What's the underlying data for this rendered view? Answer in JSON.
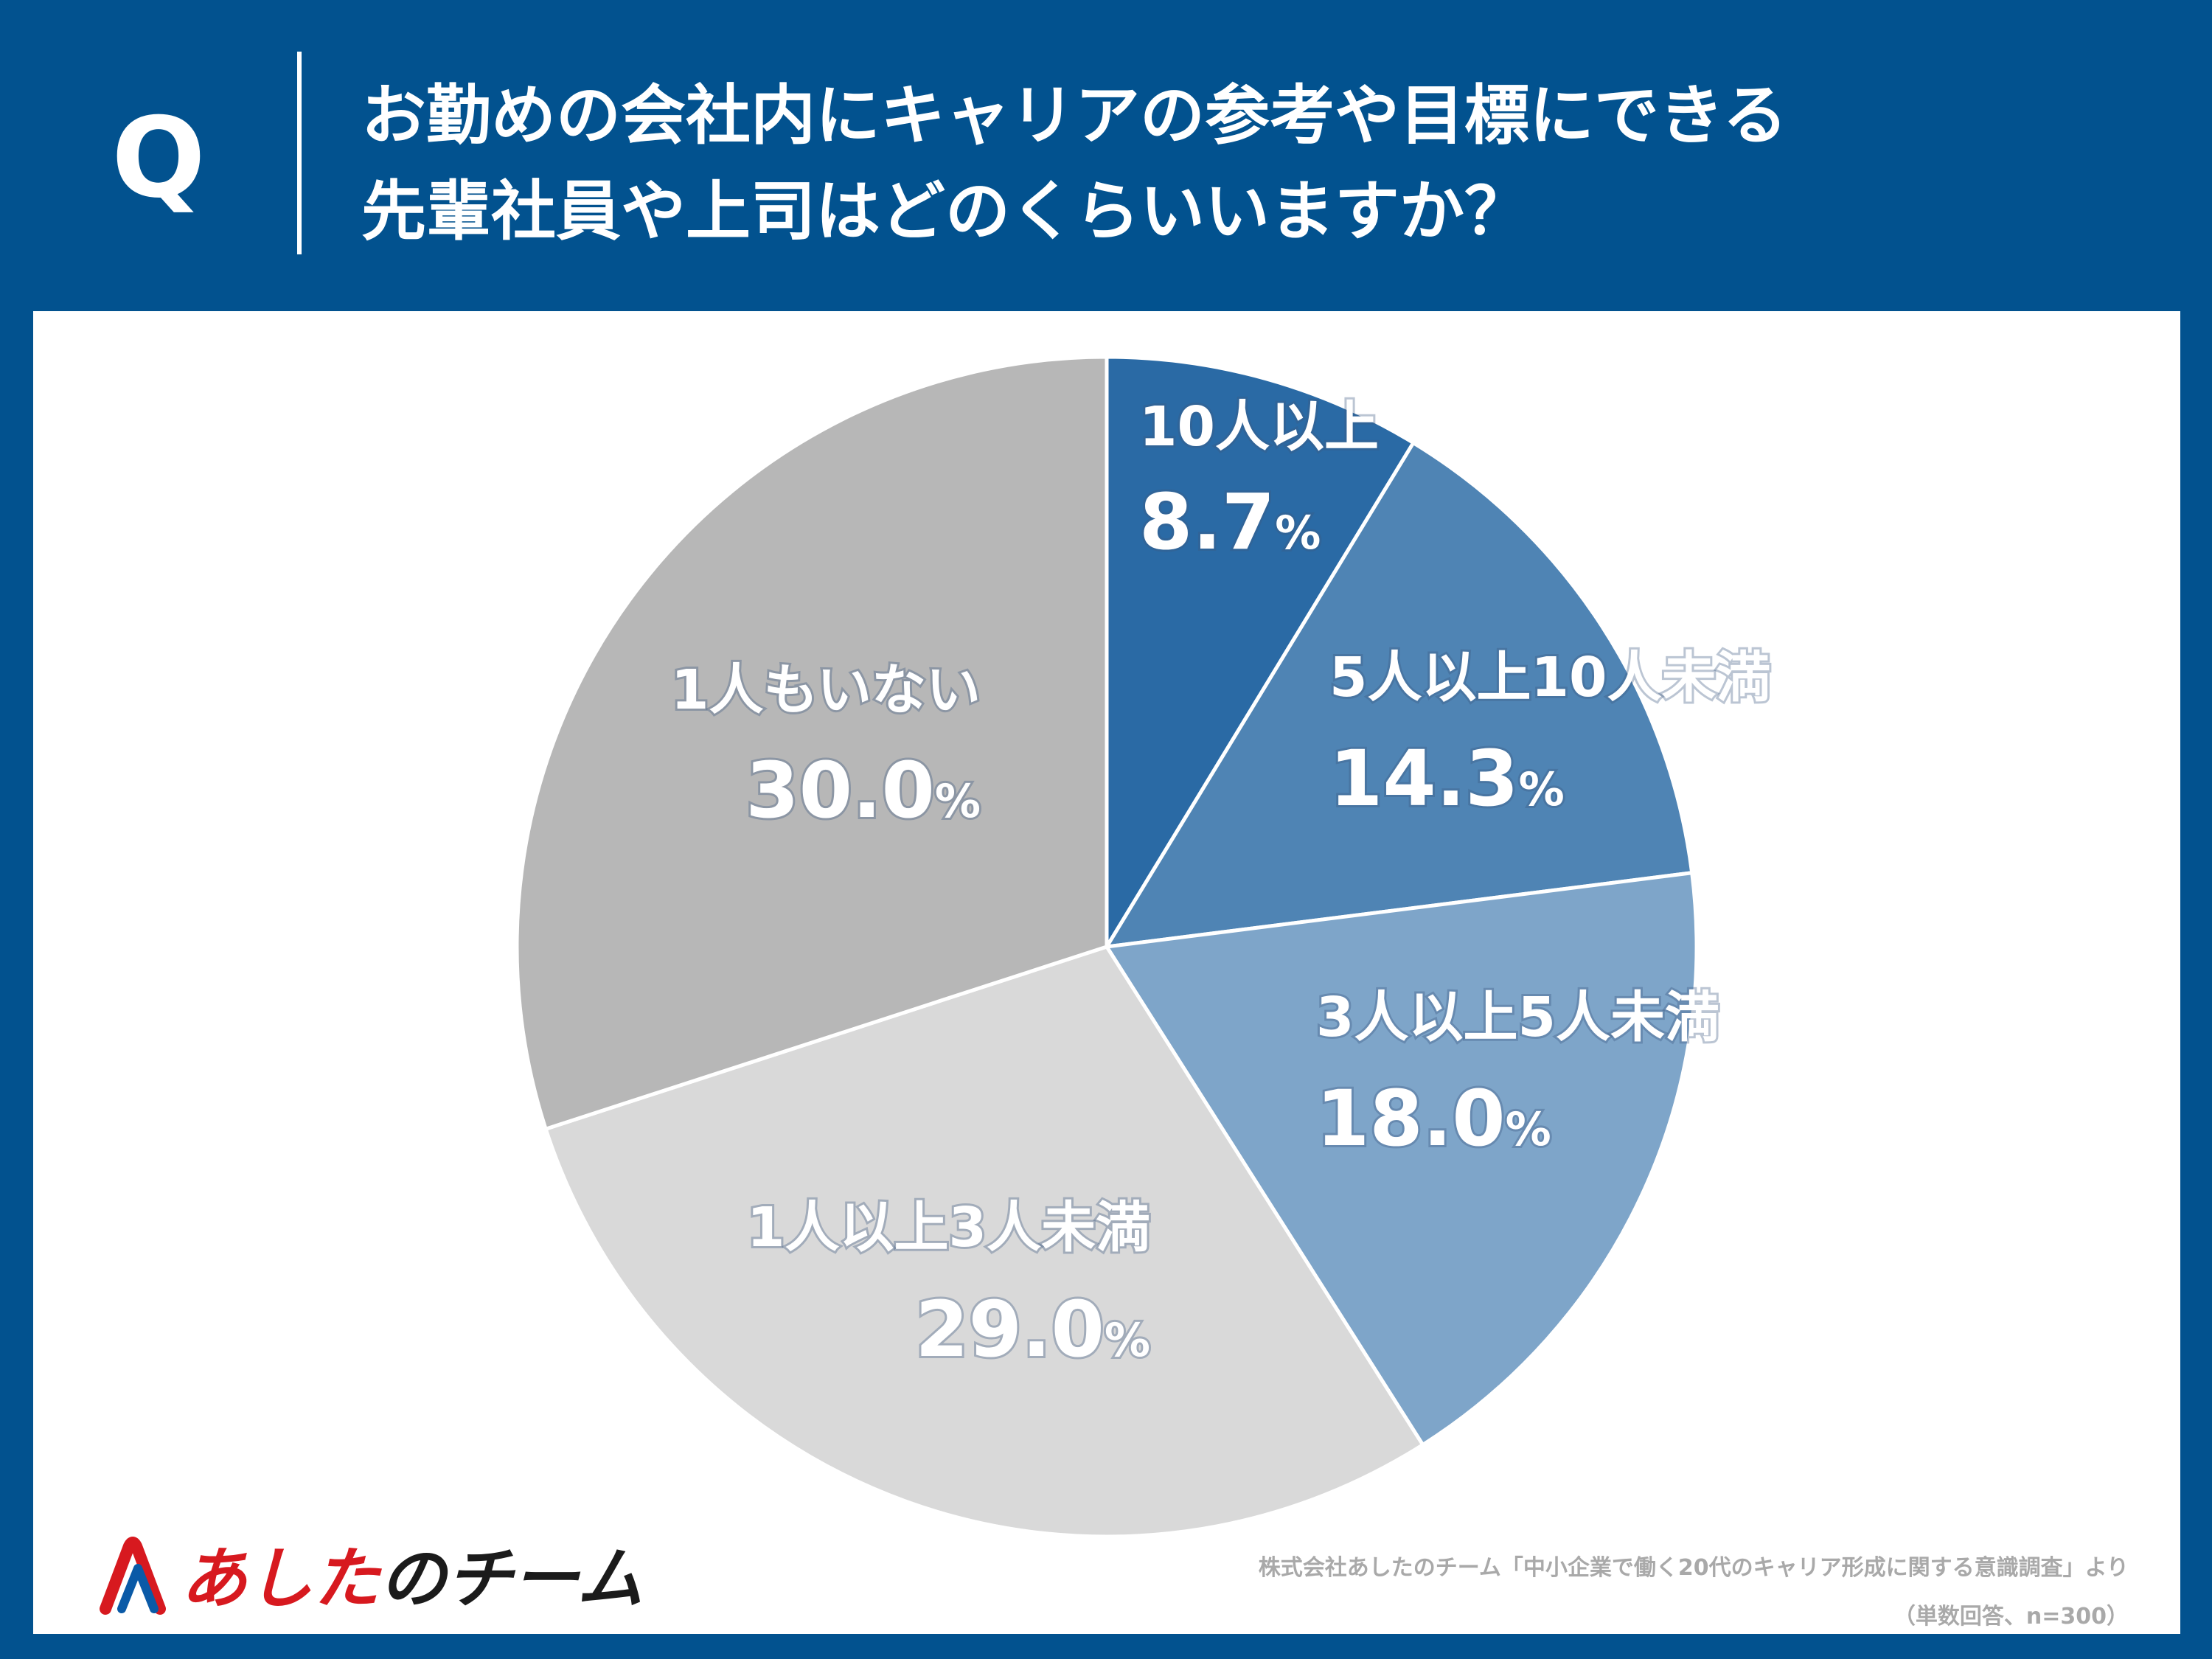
{
  "header": {
    "q_mark": "Q",
    "question_line1": "お勤めの会社内にキャリアの参考や目標にできる",
    "question_line2": "先輩社員や上司はどのくらいいますか？"
  },
  "chart_data": {
    "type": "pie",
    "title": "お勤めの会社内にキャリアの参考や目標にできる先輩社員や上司はどのくらいいますか？",
    "percent_unit": "%",
    "slices": [
      {
        "label": "10人以上",
        "value": 8.7,
        "display": "8.7",
        "color": "#2a6aa5"
      },
      {
        "label": "5人以上10人未満",
        "value": 14.3,
        "display": "14.3",
        "color": "#4f84b4"
      },
      {
        "label": "3人以上5人未満",
        "value": 18.0,
        "display": "18.0",
        "color": "#7ea5c9"
      },
      {
        "label": "1人以上3人未満",
        "value": 29.0,
        "display": "29.0",
        "color": "#d9d9d9"
      },
      {
        "label": "1人もいない",
        "value": 30.0,
        "display": "30.0",
        "color": "#b7b7b7"
      }
    ]
  },
  "logo": {
    "icon": "logo-a-mark-icon",
    "part1": "あした",
    "part2": "のチーム"
  },
  "source": {
    "line1": "株式会社あしたのチーム「中小企業で働く20代のキャリア形成に関する意識調査」より",
    "line2": "（単数回答、n=300）"
  }
}
